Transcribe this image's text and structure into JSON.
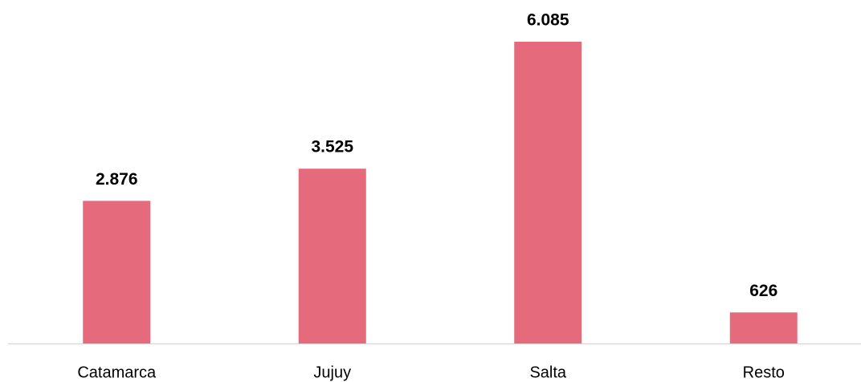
{
  "chart_data": {
    "type": "bar",
    "categories": [
      "Catamarca",
      "Jujuy",
      "Salta",
      "Resto"
    ],
    "values": [
      2876,
      3525,
      6085,
      626
    ],
    "value_labels": [
      "2.876",
      "3.525",
      "6.085",
      "626"
    ],
    "color": "#e46a7c"
  }
}
